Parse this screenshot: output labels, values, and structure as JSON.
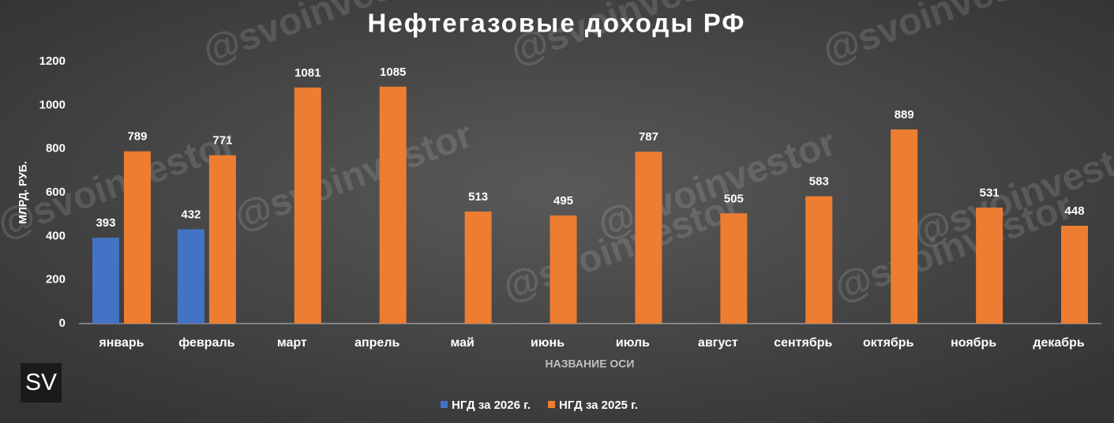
{
  "chart_data": {
    "type": "bar",
    "title": "Нефтегазовые доходы РФ",
    "y_label": "МЛРД. РУБ.",
    "x_label": "НАЗВАНИЕ ОСИ",
    "watermark": "@svoinvestor",
    "logo": "SV",
    "categories": [
      "январь",
      "февраль",
      "март",
      "апрель",
      "май",
      "июнь",
      "июль",
      "август",
      "сентябрь",
      "октябрь",
      "ноябрь",
      "декабрь"
    ],
    "series": [
      {
        "name": "НГД за 2026 г.",
        "color": "#4472c4",
        "values": [
          393,
          432,
          null,
          null,
          null,
          null,
          null,
          null,
          null,
          null,
          null,
          null
        ]
      },
      {
        "name": "НГД за 2025 г.",
        "color": "#ed7d31",
        "values": [
          789,
          771,
          1081,
          1085,
          513,
          495,
          787,
          505,
          583,
          889,
          531,
          448
        ]
      }
    ],
    "ylim": [
      0,
      1200
    ],
    "yticks": [
      0,
      200,
      400,
      600,
      800,
      1000,
      1200
    ],
    "grid": false,
    "legend": "bottom"
  }
}
